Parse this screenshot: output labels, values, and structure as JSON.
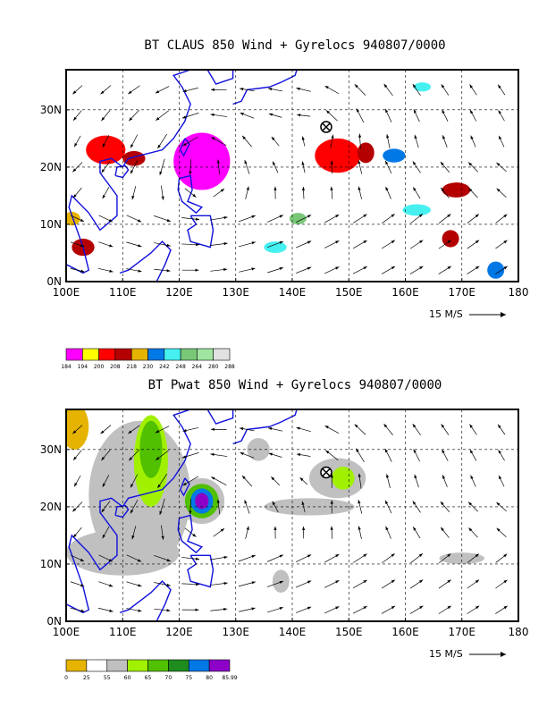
{
  "chart_data": [
    {
      "type": "heatmap",
      "title": "BT CLAUS 850 Wind + Gyrelocs 940807/0000",
      "x_ticks": [
        "100E",
        "110E",
        "120E",
        "130E",
        "140E",
        "150E",
        "160E",
        "170E",
        "180"
      ],
      "x_values": [
        100,
        110,
        120,
        130,
        140,
        150,
        160,
        170,
        180
      ],
      "y_ticks": [
        "0N",
        "10N",
        "20N",
        "30N"
      ],
      "y_values": [
        0,
        10,
        20,
        30
      ],
      "xlim": [
        100,
        180
      ],
      "ylim": [
        0,
        37
      ],
      "grid": true,
      "reference_vector": "15 M/S",
      "colorbar": {
        "labels": [
          "184",
          "194",
          "200",
          "208",
          "218",
          "230",
          "242",
          "248",
          "264",
          "280",
          "288"
        ],
        "colors": [
          "#ff00ff",
          "#ffff00",
          "#ff0000",
          "#b40000",
          "#e6b400",
          "#0078e6",
          "#46f0f0",
          "#78c878",
          "#a0e6a0",
          "#e1e1e1"
        ]
      },
      "gyre_markers": [
        {
          "lon": 146,
          "lat": 27
        }
      ],
      "features": [
        {
          "lon": 124,
          "lat": 21,
          "rx": 5,
          "ry": 5,
          "level": 0
        },
        {
          "lon": 107,
          "lat": 23,
          "rx": 3.5,
          "ry": 2.5,
          "level": 2
        },
        {
          "lon": 112,
          "lat": 21.5,
          "rx": 2,
          "ry": 1.3,
          "level": 3
        },
        {
          "lon": 148,
          "lat": 22,
          "rx": 4,
          "ry": 3,
          "level": 2
        },
        {
          "lon": 153,
          "lat": 22.5,
          "rx": 1.5,
          "ry": 1.8,
          "level": 3
        },
        {
          "lon": 169,
          "lat": 16,
          "rx": 2.5,
          "ry": 1.3,
          "level": 3
        },
        {
          "lon": 168,
          "lat": 7.5,
          "rx": 1.5,
          "ry": 1.5,
          "level": 3
        },
        {
          "lon": 103,
          "lat": 6,
          "rx": 2,
          "ry": 1.5,
          "level": 3
        },
        {
          "lon": 101,
          "lat": 11,
          "rx": 1.5,
          "ry": 1.2,
          "level": 4
        },
        {
          "lon": 158,
          "lat": 22,
          "rx": 2,
          "ry": 1.2,
          "level": 5
        },
        {
          "lon": 162,
          "lat": 12.5,
          "rx": 2.5,
          "ry": 1,
          "level": 6
        },
        {
          "lon": 176,
          "lat": 2,
          "rx": 1.5,
          "ry": 1.5,
          "level": 5
        },
        {
          "lon": 137,
          "lat": 6,
          "rx": 2,
          "ry": 1,
          "level": 6
        },
        {
          "lon": 141,
          "lat": 11,
          "rx": 1.5,
          "ry": 1,
          "level": 7
        },
        {
          "lon": 163,
          "lat": 34,
          "rx": 1.5,
          "ry": 0.8,
          "level": 6
        }
      ]
    },
    {
      "type": "heatmap",
      "title": "BT Pwat 850 Wind + Gyrelocs 940807/0000",
      "x_ticks": [
        "100E",
        "110E",
        "120E",
        "130E",
        "140E",
        "150E",
        "160E",
        "170E",
        "180"
      ],
      "x_values": [
        100,
        110,
        120,
        130,
        140,
        150,
        160,
        170,
        180
      ],
      "y_ticks": [
        "0N",
        "10N",
        "20N",
        "30N"
      ],
      "y_values": [
        0,
        10,
        20,
        30
      ],
      "xlim": [
        100,
        180
      ],
      "ylim": [
        0,
        37
      ],
      "grid": true,
      "reference_vector": "15 M/S",
      "colorbar": {
        "labels": [
          "0",
          "25",
          "55",
          "60",
          "65",
          "70",
          "75",
          "80",
          "85.99"
        ],
        "colors": [
          "#e6b400",
          "#ffffff",
          "#c0c0c0",
          "#a0f000",
          "#50c000",
          "#1e8c1e",
          "#0078e6",
          "#8c00c8"
        ]
      },
      "gyre_markers": [
        {
          "lon": 146,
          "lat": 26
        }
      ],
      "features": [
        {
          "lon": 113,
          "lat": 22,
          "rx": 9,
          "ry": 13,
          "level": 2
        },
        {
          "lon": 115,
          "lat": 28,
          "rx": 3,
          "ry": 8,
          "level": 3
        },
        {
          "lon": 115,
          "lat": 30,
          "rx": 2,
          "ry": 5,
          "level": 4
        },
        {
          "lon": 124,
          "lat": 21,
          "rx": 4,
          "ry": 4,
          "level": 2
        },
        {
          "lon": 124,
          "lat": 21,
          "rx": 3,
          "ry": 3,
          "level": 4
        },
        {
          "lon": 124,
          "lat": 21,
          "rx": 2,
          "ry": 2.2,
          "level": 6
        },
        {
          "lon": 124,
          "lat": 21,
          "rx": 1.2,
          "ry": 1.4,
          "level": 7
        },
        {
          "lon": 110,
          "lat": 12,
          "rx": 10,
          "ry": 4,
          "level": 2
        },
        {
          "lon": 148,
          "lat": 25,
          "rx": 5,
          "ry": 3.5,
          "level": 2
        },
        {
          "lon": 149,
          "lat": 25,
          "rx": 2,
          "ry": 2,
          "level": 3
        },
        {
          "lon": 143,
          "lat": 20,
          "rx": 8,
          "ry": 1.5,
          "level": 2
        },
        {
          "lon": 101.5,
          "lat": 34,
          "rx": 2.5,
          "ry": 4,
          "level": 0
        },
        {
          "lon": 170,
          "lat": 11,
          "rx": 4,
          "ry": 1,
          "level": 2
        },
        {
          "lon": 134,
          "lat": 30,
          "rx": 2,
          "ry": 2,
          "level": 2
        },
        {
          "lon": 138,
          "lat": 7,
          "rx": 1.5,
          "ry": 2,
          "level": 2
        }
      ]
    }
  ]
}
